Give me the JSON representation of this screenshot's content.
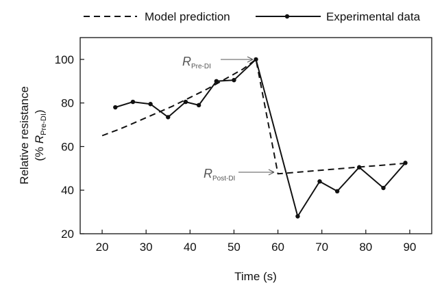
{
  "chart_data": {
    "type": "line",
    "xlabel": "Time (s)",
    "ylabel": {
      "line1": "Relative resistance",
      "line2_prefix": "(% ",
      "line2_symbol": "R",
      "line2_subscript": "Pre-DI",
      "line2_suffix": ")"
    },
    "xlim": [
      15,
      95
    ],
    "ylim": [
      20,
      110
    ],
    "x_ticks": [
      20,
      30,
      40,
      50,
      60,
      70,
      80,
      90
    ],
    "y_ticks": [
      20,
      40,
      60,
      80,
      100
    ],
    "grid": false,
    "legend_position": "top",
    "series": [
      {
        "name": "Model prediction",
        "style": "dashed",
        "color": "#111111",
        "x": [
          20,
          24,
          28,
          32,
          36,
          40,
          44,
          48,
          52,
          55,
          60,
          66,
          72,
          78,
          84,
          90
        ],
        "y": [
          65,
          68,
          71.5,
          75,
          78.5,
          82.5,
          86.5,
          91,
          95.5,
          100,
          47.5,
          48.5,
          49.5,
          50.5,
          51.5,
          52.5
        ]
      },
      {
        "name": "Experimental data",
        "style": "solid-with-markers",
        "color": "#111111",
        "x": [
          23,
          27,
          31,
          35,
          39,
          42,
          46,
          50,
          55,
          64.5,
          69.5,
          73.5,
          78.5,
          84,
          89
        ],
        "y": [
          78,
          80.5,
          79.5,
          73.5,
          80.5,
          79,
          90,
          90.5,
          100,
          28,
          44,
          39.5,
          50.5,
          41,
          52.5
        ]
      }
    ],
    "annotations": [
      {
        "symbol": "R",
        "subscript": "Pre-DI",
        "x": 55,
        "y": 100
      },
      {
        "symbol": "R",
        "subscript": "Post-DI",
        "x": 60,
        "y": 47.5
      }
    ]
  }
}
